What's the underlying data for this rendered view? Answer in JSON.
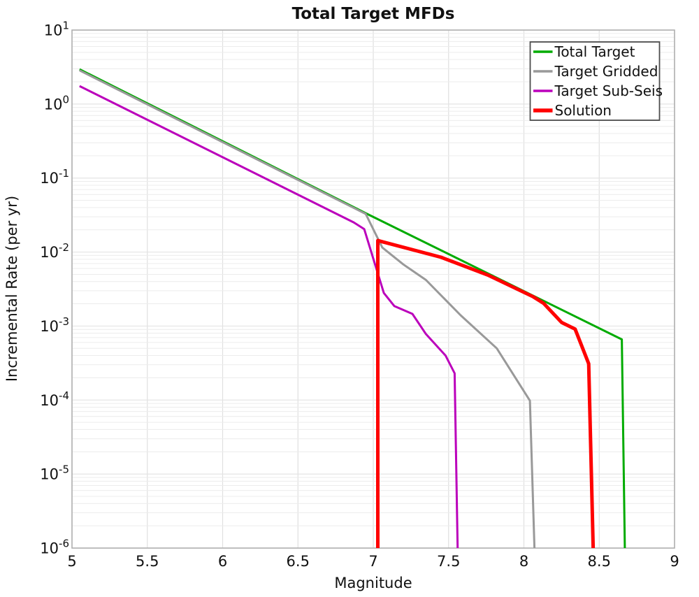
{
  "title": "Total Target MFDs",
  "axes": {
    "xlabel": "Magnitude",
    "ylabel": "Incremental Rate (per yr)",
    "x_ticks": [
      5,
      5.5,
      6,
      6.5,
      7,
      7.5,
      8,
      8.5,
      9
    ],
    "x_tick_labels": [
      "5",
      "5.5",
      "6",
      "6.5",
      "7",
      "7.5",
      "8",
      "8.5",
      "9"
    ],
    "y_tick_base": "10",
    "y_tick_exponents": [
      "1",
      "0",
      "-1",
      "-2",
      "-3",
      "-4",
      "-5",
      "-6"
    ]
  },
  "legend": {
    "entries": [
      {
        "label": "Total Target",
        "color": "#00ab00",
        "width": 3
      },
      {
        "label": "Target Gridded",
        "color": "#999999",
        "width": 3
      },
      {
        "label": "Target Sub-Seis",
        "color": "#bb00bb",
        "width": 3
      },
      {
        "label": "Solution",
        "color": "#ff0000",
        "width": 5
      }
    ]
  },
  "colors": {
    "spine": "#b0b0b0",
    "grid_minor": "#ececec",
    "grid_major": "#e4e4e4",
    "grid_vertical": "#e0e0e0",
    "legend_border": "#4d4d4d",
    "background": "#ffffff"
  },
  "chart_data": {
    "type": "line",
    "title": "Total Target MFDs",
    "xlabel": "Magnitude",
    "ylabel": "Incremental Rate (per yr)",
    "x_range": [
      5,
      9
    ],
    "y_scale": "log",
    "y_range_log10": [
      -6,
      1
    ],
    "grid": true,
    "legend_position": "upper-right",
    "series": [
      {
        "name": "Total Target",
        "color": "#00ab00",
        "width": 3,
        "points": [
          [
            5.05,
            2.95
          ],
          [
            6.95,
            0.0335
          ],
          [
            8.65,
            0.00066
          ],
          [
            8.67,
            1e-06
          ]
        ]
      },
      {
        "name": "Target Gridded",
        "color": "#999999",
        "width": 3,
        "points": [
          [
            5.05,
            2.85
          ],
          [
            6.95,
            0.0328
          ],
          [
            7.06,
            0.0115
          ],
          [
            7.2,
            0.0068
          ],
          [
            7.35,
            0.0042
          ],
          [
            7.58,
            0.0014
          ],
          [
            7.82,
            0.0005
          ],
          [
            8.04,
            9.8e-05
          ],
          [
            8.07,
            1e-06
          ]
        ]
      },
      {
        "name": "Target Sub-Seis",
        "color": "#bb00bb",
        "width": 3,
        "points": [
          [
            5.05,
            1.75
          ],
          [
            6.87,
            0.0252
          ],
          [
            6.94,
            0.0204
          ],
          [
            7.07,
            0.0028
          ],
          [
            7.14,
            0.00186
          ],
          [
            7.26,
            0.00146
          ],
          [
            7.35,
            0.00078
          ],
          [
            7.48,
            0.0004
          ],
          [
            7.54,
            0.00023
          ],
          [
            7.56,
            1e-06
          ]
        ]
      },
      {
        "name": "Solution",
        "color": "#ff0000",
        "width": 5,
        "points": [
          [
            7.03,
            1e-06
          ],
          [
            7.03,
            0.0143
          ],
          [
            7.06,
            0.0138
          ],
          [
            7.45,
            0.0085
          ],
          [
            7.76,
            0.0049
          ],
          [
            8.06,
            0.0025
          ],
          [
            8.13,
            0.00204
          ],
          [
            8.25,
            0.00112
          ],
          [
            8.34,
            0.00091
          ],
          [
            8.43,
            0.00031
          ],
          [
            8.46,
            1e-06
          ]
        ]
      }
    ]
  }
}
